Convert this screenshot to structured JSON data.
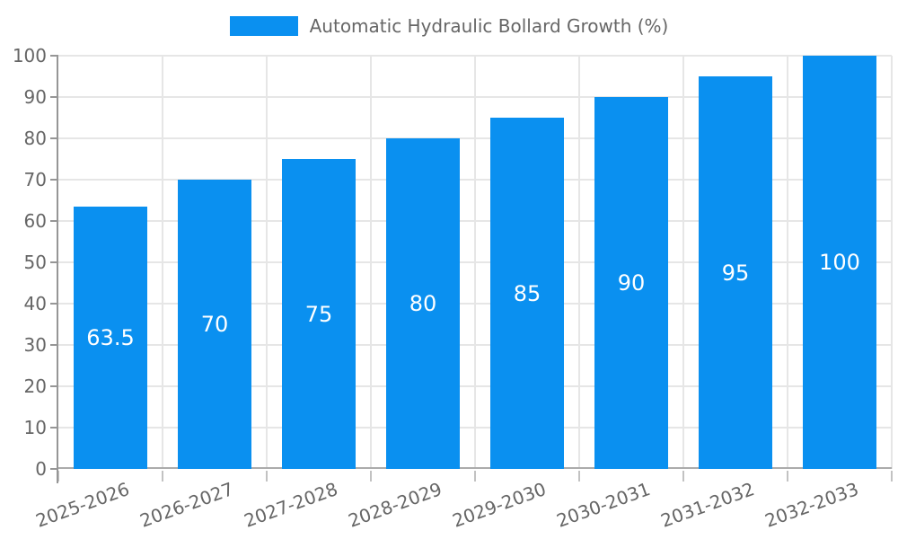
{
  "chart_data": {
    "type": "bar",
    "title": "",
    "legend": "Automatic Hydraulic Bollard Growth (%)",
    "legend_position": "top",
    "categories": [
      "2025-2026",
      "2026-2027",
      "2027-2028",
      "2028-2029",
      "2029-2030",
      "2030-2031",
      "2031-2032",
      "2032-2033"
    ],
    "values": [
      63.5,
      70,
      75,
      80,
      85,
      90,
      95,
      100
    ],
    "value_labels": [
      "63.5",
      "70",
      "75",
      "80",
      "85",
      "90",
      "95",
      "100"
    ],
    "xlabel": "",
    "ylabel": "",
    "ylim": [
      0,
      100
    ],
    "ytick_step": 10,
    "grid": true,
    "colors": {
      "bar": "#0a90f0",
      "bar_label": "#ffffff",
      "grid": "#e6e6e6",
      "axis": "#969696",
      "baseline": "#ababab",
      "x_tick_mark": "#c2c2c2",
      "tick_text": "#666666",
      "legend_text": "#666666"
    }
  }
}
